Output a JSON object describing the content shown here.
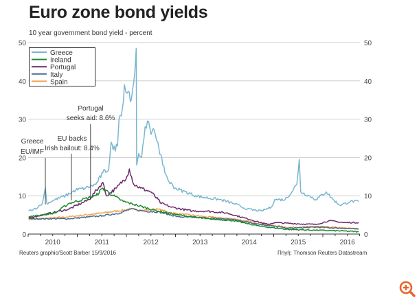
{
  "chart_data": {
    "type": "line",
    "title": "Euro zone bond yields",
    "subtitle": "10 year government bond yield - percent",
    "ylim": [
      0,
      50
    ],
    "xlim": [
      2010.0,
      2016.75
    ],
    "yticks": [
      0,
      10,
      20,
      30,
      40,
      50
    ],
    "xticks": [
      "2010",
      "2011",
      "2012",
      "2013",
      "2014",
      "2015",
      "2016"
    ],
    "grid": true,
    "legend_position": "top-left",
    "series": [
      {
        "name": "Greece",
        "color": "#79b6cf",
        "points": [
          [
            2010.01,
            6
          ],
          [
            2010.2,
            7
          ],
          [
            2010.29,
            8
          ],
          [
            2010.35,
            12
          ],
          [
            2010.38,
            8
          ],
          [
            2010.55,
            9
          ],
          [
            2010.76,
            10
          ],
          [
            2010.97,
            11.5
          ],
          [
            2011.17,
            12
          ],
          [
            2011.38,
            13
          ],
          [
            2011.52,
            16
          ],
          [
            2011.64,
            17
          ],
          [
            2011.69,
            24
          ],
          [
            2011.73,
            22
          ],
          [
            2011.82,
            23
          ],
          [
            2011.85,
            30
          ],
          [
            2011.92,
            33
          ],
          [
            2011.96,
            39
          ],
          [
            2011.99,
            37
          ],
          [
            2012.06,
            37
          ],
          [
            2012.1,
            35
          ],
          [
            2012.13,
            38
          ],
          [
            2012.17,
            42
          ],
          [
            2012.2,
            48.5
          ],
          [
            2012.21,
            18
          ],
          [
            2012.25,
            21
          ],
          [
            2012.31,
            20
          ],
          [
            2012.38,
            28
          ],
          [
            2012.43,
            29.5
          ],
          [
            2012.5,
            26
          ],
          [
            2012.57,
            27
          ],
          [
            2012.64,
            24
          ],
          [
            2012.74,
            18
          ],
          [
            2012.85,
            14
          ],
          [
            2012.99,
            12
          ],
          [
            2013.2,
            11
          ],
          [
            2013.41,
            10
          ],
          [
            2013.62,
            9.5
          ],
          [
            2013.9,
            9
          ],
          [
            2014.18,
            8
          ],
          [
            2014.46,
            6.5
          ],
          [
            2014.74,
            6
          ],
          [
            2014.95,
            7
          ],
          [
            2015.02,
            9
          ],
          [
            2015.23,
            9
          ],
          [
            2015.37,
            11
          ],
          [
            2015.47,
            13
          ],
          [
            2015.52,
            19.5
          ],
          [
            2015.55,
            11
          ],
          [
            2015.72,
            10
          ],
          [
            2015.86,
            9
          ],
          [
            2016.07,
            11
          ],
          [
            2016.21,
            9
          ],
          [
            2016.35,
            7.5
          ],
          [
            2016.56,
            8.5
          ],
          [
            2016.73,
            8.5
          ]
        ]
      },
      {
        "name": "Ireland",
        "color": "#1b8a2b",
        "points": [
          [
            2010.01,
            4.5
          ],
          [
            2010.55,
            5.5
          ],
          [
            2010.83,
            8
          ],
          [
            2011.1,
            9
          ],
          [
            2011.38,
            10
          ],
          [
            2011.52,
            12
          ],
          [
            2011.73,
            10
          ],
          [
            2011.94,
            8.5
          ],
          [
            2012.22,
            7.5
          ],
          [
            2012.64,
            6
          ],
          [
            2013.06,
            5
          ],
          [
            2013.62,
            4
          ],
          [
            2014.18,
            3.5
          ],
          [
            2014.74,
            2
          ],
          [
            2015.3,
            1.2
          ],
          [
            2015.86,
            1
          ],
          [
            2016.42,
            0.8
          ],
          [
            2016.73,
            0.6
          ]
        ]
      },
      {
        "name": "Portugal",
        "color": "#6a2a6a",
        "points": [
          [
            2010.01,
            4.2
          ],
          [
            2010.83,
            6.5
          ],
          [
            2011.24,
            9
          ],
          [
            2011.52,
            13.5
          ],
          [
            2011.59,
            10
          ],
          [
            2011.8,
            12
          ],
          [
            2012.01,
            15
          ],
          [
            2012.06,
            17
          ],
          [
            2012.15,
            13
          ],
          [
            2012.29,
            12
          ],
          [
            2012.5,
            11
          ],
          [
            2012.71,
            8
          ],
          [
            2012.92,
            7
          ],
          [
            2013.34,
            6
          ],
          [
            2013.62,
            6
          ],
          [
            2014.04,
            5.5
          ],
          [
            2014.46,
            4
          ],
          [
            2014.74,
            3
          ],
          [
            2014.88,
            2.5
          ],
          [
            2015.02,
            3
          ],
          [
            2015.44,
            2.7
          ],
          [
            2015.86,
            2.5
          ],
          [
            2016.14,
            3.5
          ],
          [
            2016.42,
            3
          ],
          [
            2016.73,
            3
          ]
        ]
      },
      {
        "name": "Italy",
        "color": "#4a6a8c",
        "points": [
          [
            2010.01,
            4
          ],
          [
            2010.83,
            4
          ],
          [
            2011.52,
            4.8
          ],
          [
            2011.87,
            5.5
          ],
          [
            2012.08,
            6.5
          ],
          [
            2012.36,
            6
          ],
          [
            2012.64,
            5.8
          ],
          [
            2013.06,
            4.5
          ],
          [
            2013.62,
            4.2
          ],
          [
            2014.18,
            3.8
          ],
          [
            2014.74,
            2.5
          ],
          [
            2015.3,
            1.5
          ],
          [
            2015.86,
            1.8
          ],
          [
            2016.42,
            1.5
          ],
          [
            2016.73,
            1.3
          ]
        ]
      },
      {
        "name": "Spain",
        "color": "#f0a050",
        "points": [
          [
            2010.01,
            3.8
          ],
          [
            2010.83,
            4.5
          ],
          [
            2011.52,
            5.5
          ],
          [
            2012.08,
            6.5
          ],
          [
            2012.36,
            6.2
          ],
          [
            2012.64,
            6.5
          ],
          [
            2012.92,
            5.5
          ],
          [
            2013.62,
            4.5
          ],
          [
            2014.18,
            4
          ],
          [
            2014.74,
            2.7
          ],
          [
            2015.3,
            1.7
          ],
          [
            2015.86,
            2
          ],
          [
            2016.42,
            1.6
          ],
          [
            2016.73,
            1.3
          ]
        ]
      }
    ],
    "annotations": [
      {
        "lines": [
          "Greece",
          "EU/IMF"
        ],
        "x": 2010.35
      },
      {
        "lines": [
          "EU backs",
          "Irish bailout: 8.4%"
        ],
        "x": 2010.88
      },
      {
        "lines": [
          "Portugal",
          "seeks aid: 8.6%"
        ],
        "x": 2011.27
      }
    ]
  },
  "footer": {
    "credit": "Reuters graphic/Scott Barber 15/9/2016",
    "source": "Πηγή: Thomson Reuters Datastream"
  },
  "icons": {
    "zoom": "zoom-in-icon"
  },
  "colors": {
    "accent": "#e8652a"
  }
}
